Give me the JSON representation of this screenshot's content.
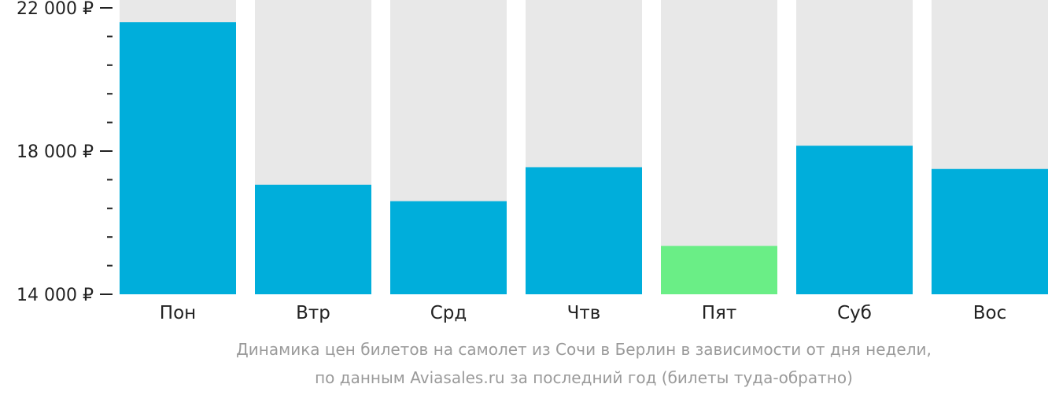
{
  "chart_data": {
    "type": "bar",
    "categories": [
      "Пон",
      "Втр",
      "Срд",
      "Чтв",
      "Пят",
      "Суб",
      "Вос"
    ],
    "values": [
      21600,
      17060,
      16600,
      17550,
      15350,
      18150,
      17500
    ],
    "ylim": [
      14000,
      22000
    ],
    "y_tick_labels": [
      "22 000 ₽",
      "18 000 ₽",
      "14 000 ₽"
    ],
    "y_tick_values": [
      22000,
      18000,
      14000
    ],
    "y_minor_step": 800,
    "title": "Динамика цен билетов на самолет из Сочи в Берлин в зависимости от дня недели,",
    "subtitle": "по данным Aviasales.ru за последний год (билеты туда-обратно)",
    "colors": {
      "bar": "#00AEDB",
      "highlight": "#6AEE86",
      "track": "#E8E8E8",
      "text": "#222222",
      "caption": "#9A9A9A"
    },
    "highlight_index": 4
  }
}
